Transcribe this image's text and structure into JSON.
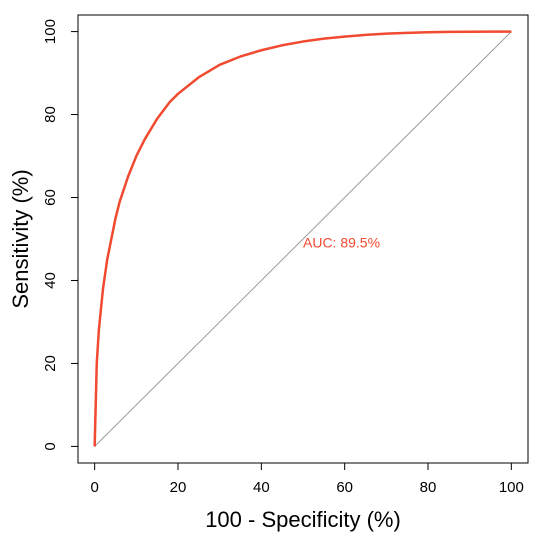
{
  "chart_data": {
    "type": "line",
    "xlabel": "100 -  Specificity (%)",
    "ylabel": "Sensitivity (%)",
    "xlim": [
      -4,
      104
    ],
    "ylim": [
      -4,
      104
    ],
    "x_ticks": [
      "0",
      "20",
      "40",
      "60",
      "80",
      "100"
    ],
    "y_ticks": [
      "0",
      "20",
      "40",
      "60",
      "80",
      "100"
    ],
    "grid": false,
    "legend": "none",
    "series": [
      {
        "color": "#f04a30",
        "x": [
          0,
          0.5,
          1,
          2,
          3,
          4,
          5,
          6,
          8,
          10,
          12,
          15,
          18,
          20,
          25,
          30,
          35,
          40,
          45,
          50,
          55,
          60,
          65,
          70,
          75,
          80,
          85,
          90,
          95,
          100
        ],
        "y": [
          0,
          20,
          28,
          38,
          45,
          50,
          55,
          59,
          65,
          70,
          74,
          79,
          83,
          85,
          89,
          92,
          94,
          95.5,
          96.7,
          97.6,
          98.3,
          98.8,
          99.2,
          99.5,
          99.7,
          99.85,
          99.93,
          99.97,
          100,
          100
        ]
      },
      {
        "color": "#9a9a9a",
        "x": [
          0,
          100
        ],
        "y": [
          0,
          100
        ]
      }
    ],
    "annotations": [
      {
        "text": "AUC: 89.5%",
        "x": 50,
        "y": 48,
        "color": "#f04a30"
      }
    ]
  }
}
